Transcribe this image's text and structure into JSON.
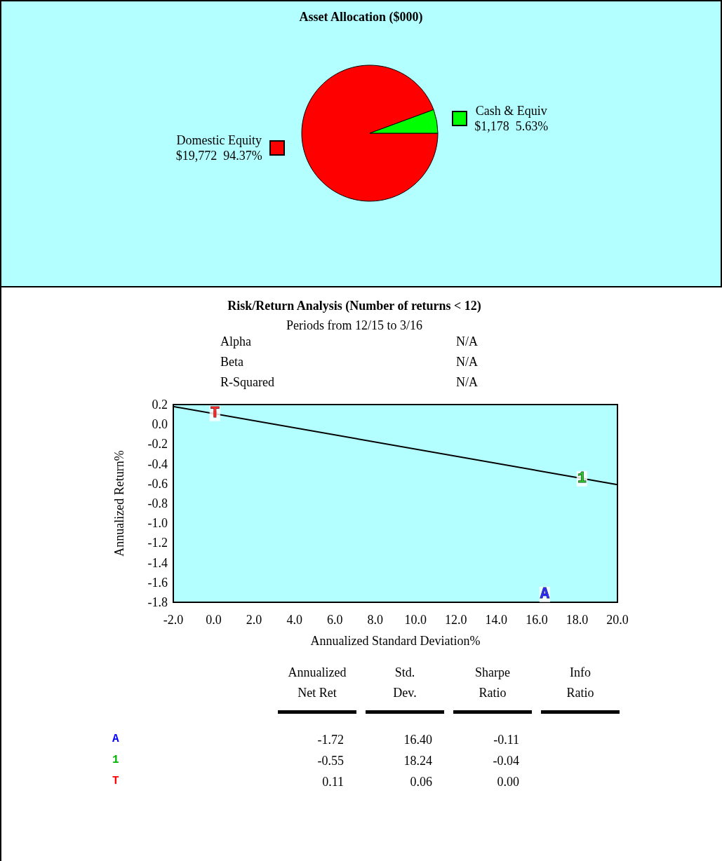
{
  "chart_data": [
    {
      "type": "pie",
      "title": "Asset Allocation ($000)",
      "categories": [
        "Domestic Equity",
        "Cash & Equiv"
      ],
      "values": [
        19772,
        1178
      ],
      "colors": [
        "#ff0000",
        "#00ff00"
      ],
      "value_labels": [
        "$19,772  94.37%",
        "$1,178  5.63%"
      ]
    },
    {
      "type": "scatter",
      "title": "Risk/Return Analysis (Number of returns < 12)",
      "subtitle": "Periods from 12/15 to 3/16",
      "xlabel": "Annualized Standard Deviation%",
      "ylabel": "Annualized Return%",
      "annotations": [
        "Alpha",
        "N/A",
        "Beta",
        "N/A",
        "R-Squared",
        "N/A"
      ],
      "xlim": [
        -2,
        20
      ],
      "xticks": [
        {
          "value": -2,
          "label": "-2.0"
        },
        {
          "value": 0,
          "label": "0.0"
        },
        {
          "value": 2,
          "label": "2.0"
        },
        {
          "value": 4,
          "label": "4.0"
        },
        {
          "value": 6,
          "label": "6.0"
        },
        {
          "value": 8,
          "label": "8.0"
        },
        {
          "value": 10,
          "label": "10.0"
        },
        {
          "value": 12,
          "label": "12.0"
        },
        {
          "value": 14,
          "label": "14.0"
        },
        {
          "value": 16,
          "label": "16.0"
        },
        {
          "value": 18,
          "label": "18.0"
        },
        {
          "value": 20,
          "label": "20.0"
        }
      ],
      "ylim": [
        -1.8,
        0.2
      ],
      "yticks": [
        {
          "value": -1.8,
          "label": "-1.8"
        },
        {
          "value": -1.6,
          "label": "-1.6"
        },
        {
          "value": -1.4,
          "label": "-1.4"
        },
        {
          "value": -1.2,
          "label": "-1.2"
        },
        {
          "value": -1.0,
          "label": "-1.0"
        },
        {
          "value": -0.8,
          "label": "-0.8"
        },
        {
          "value": -0.6,
          "label": "-0.6"
        },
        {
          "value": -0.4,
          "label": "-0.4"
        },
        {
          "value": -0.2,
          "label": "-0.2"
        },
        {
          "value": 0,
          "label": "0.0"
        },
        {
          "value": 0.2,
          "label": "0.2"
        }
      ],
      "grid": false,
      "series": [
        {
          "name": "A",
          "color": "#0000ff",
          "marker": "circle",
          "x": [
            16.4
          ],
          "values": [
            -1.72
          ]
        },
        {
          "name": "1",
          "color": "#00b400",
          "marker": "circle",
          "x": [
            18.24
          ],
          "values": [
            -0.55
          ]
        },
        {
          "name": "T",
          "color": "#ff0000",
          "marker": "circle",
          "x": [
            0.06
          ],
          "values": [
            0.11
          ]
        },
        {
          "type": "line",
          "color": "#000000",
          "x": [
            -2,
            20
          ],
          "values": [
            0.18,
            -0.61
          ]
        }
      ]
    },
    {
      "type": "other",
      "annotations": [
        "Annualized\nNet Ret",
        "Std.\nDev.",
        "Sharpe\nRatio",
        "Info\nRatio",
        "A",
        "-1.72",
        "16.40",
        "-0.11",
        "1",
        "-0.55",
        "18.24",
        "-0.04",
        "T",
        "0.11",
        "0.06",
        "0.00"
      ]
    }
  ]
}
